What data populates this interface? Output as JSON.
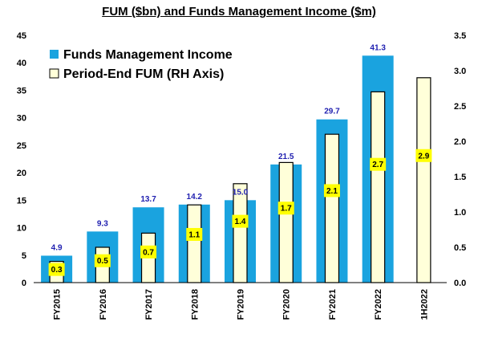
{
  "chart_data": {
    "type": "bar",
    "title": "FUM ($bn) and Funds Management Income ($m)",
    "categories": [
      "FY2015",
      "FY2016",
      "FY2017",
      "FY2018",
      "FY2019",
      "FY2020",
      "FY2021",
      "FY2022",
      "1H2022"
    ],
    "series": [
      {
        "name": "Funds Management Income",
        "axis": "left",
        "color": "#1AA3DF",
        "values": [
          4.9,
          9.3,
          13.7,
          14.2,
          15.0,
          21.5,
          29.7,
          41.3,
          null
        ],
        "labels": [
          "4.9",
          "9.3",
          "13.7",
          "14.2",
          "15.0",
          "21.5",
          "29.7",
          "41.3",
          ""
        ]
      },
      {
        "name": "Period-End FUM (RH Axis)",
        "axis": "right",
        "color": "#FFFFD9",
        "values": [
          0.3,
          0.5,
          0.7,
          1.1,
          1.4,
          1.7,
          2.1,
          2.7,
          2.9
        ],
        "labels": [
          "0.3",
          "0.5",
          "0.7",
          "1.1",
          "1.4",
          "1.7",
          "2.1",
          "2.7",
          "2.9"
        ]
      }
    ],
    "y_left": {
      "min": 0,
      "max": 45,
      "step": 5,
      "ticks": [
        "0",
        "5",
        "10",
        "15",
        "20",
        "25",
        "30",
        "35",
        "40",
        "45"
      ]
    },
    "y_right": {
      "min": 0,
      "max": 3.5,
      "step": 0.5,
      "ticks": [
        "0.0",
        "0.5",
        "1.0",
        "1.5",
        "2.0",
        "2.5",
        "3.0",
        "3.5"
      ]
    },
    "legend_position": "top-left",
    "value_label_color": "#1F1FB0",
    "fum_label_bg": "#FFFF00",
    "grid": false
  }
}
